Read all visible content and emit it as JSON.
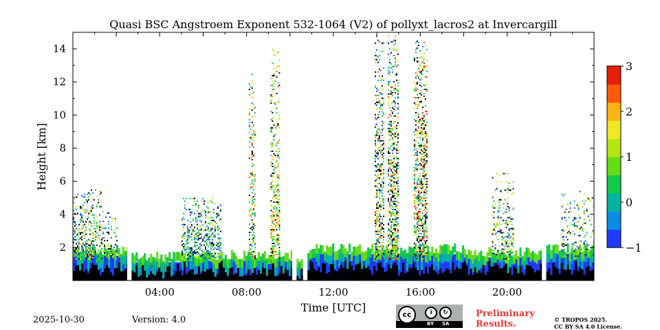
{
  "chart_data": {
    "type": "heatmap",
    "title": "Quasi BSC Angstroem Exponent 532-1064 (V2) of pollyxt_lacros2 at Invercargill",
    "xlabel": "Time [UTC]",
    "ylabel": "Height [km]",
    "xlim_hours": [
      0,
      24
    ],
    "ylim_km": [
      0,
      15
    ],
    "x_ticks": [
      {
        "hour": 4,
        "label": "04:00"
      },
      {
        "hour": 8,
        "label": "08:00"
      },
      {
        "hour": 12,
        "label": "12:00"
      },
      {
        "hour": 16,
        "label": "16:00"
      },
      {
        "hour": 20,
        "label": "20:00"
      }
    ],
    "y_ticks": [
      {
        "value": 2,
        "label": "2"
      },
      {
        "value": 4,
        "label": "4"
      },
      {
        "value": 6,
        "label": "6"
      },
      {
        "value": 8,
        "label": "8"
      },
      {
        "value": 10,
        "label": "10"
      },
      {
        "value": 12,
        "label": "12"
      },
      {
        "value": 14,
        "label": "14"
      }
    ],
    "colorbar": {
      "range": [
        -1,
        3
      ],
      "colors": [
        "#1e3cff",
        "#0a8ce6",
        "#00b4a0",
        "#14c84b",
        "#64dc14",
        "#b4e614",
        "#f0e628",
        "#ffb414",
        "#ff5a0a",
        "#e61e0a"
      ],
      "ticks": [
        {
          "value": 3,
          "label": "3"
        },
        {
          "value": 2,
          "label": "2"
        },
        {
          "value": 1,
          "label": "1"
        },
        {
          "value": 0,
          "label": "0"
        },
        {
          "value": -1,
          "label": "−1"
        }
      ]
    },
    "low_layer_blocks": [
      {
        "start": 0.0,
        "end": 2.5,
        "top": 1.5
      },
      {
        "start": 2.7,
        "end": 5.0,
        "top": 1.1
      },
      {
        "start": 5.0,
        "end": 10.1,
        "top": 1.2
      },
      {
        "start": 10.3,
        "end": 10.6,
        "top": 1.0
      },
      {
        "start": 10.8,
        "end": 18.0,
        "top": 1.6
      },
      {
        "start": 18.0,
        "end": 21.6,
        "top": 1.4
      },
      {
        "start": 21.8,
        "end": 24.0,
        "top": 1.6
      }
    ],
    "data_gaps": [
      {
        "start": 2.5,
        "end": 2.7
      },
      {
        "start": 10.1,
        "end": 10.3
      },
      {
        "start": 10.6,
        "end": 10.8
      },
      {
        "start": 21.6,
        "end": 21.8
      }
    ],
    "plumes": [
      {
        "start": 0.0,
        "end": 1.3,
        "top": 5.5,
        "density": 0.45,
        "vmin": -1,
        "vmax": 2
      },
      {
        "start": 1.3,
        "end": 2.0,
        "top": 4.2,
        "density": 0.3,
        "vmin": -1,
        "vmax": 1.5
      },
      {
        "start": 5.0,
        "end": 6.8,
        "top": 5.0,
        "density": 0.5,
        "vmin": -1,
        "vmax": 1.5
      },
      {
        "start": 8.1,
        "end": 8.4,
        "top": 12.5,
        "density": 0.35,
        "vmin": -0.5,
        "vmax": 2.5
      },
      {
        "start": 9.1,
        "end": 9.5,
        "top": 14.0,
        "density": 0.45,
        "vmin": 0,
        "vmax": 2.5
      },
      {
        "start": 13.9,
        "end": 14.3,
        "top": 14.8,
        "density": 0.5,
        "vmin": -1,
        "vmax": 2.5
      },
      {
        "start": 14.5,
        "end": 15.0,
        "top": 14.8,
        "density": 0.55,
        "vmin": -1,
        "vmax": 2.5
      },
      {
        "start": 15.7,
        "end": 16.3,
        "top": 14.5,
        "density": 0.55,
        "vmin": -0.5,
        "vmax": 3
      },
      {
        "start": 19.3,
        "end": 20.3,
        "top": 6.5,
        "density": 0.3,
        "vmin": -1,
        "vmax": 2
      },
      {
        "start": 22.5,
        "end": 24.0,
        "top": 5.5,
        "density": 0.2,
        "vmin": -1,
        "vmax": 2
      }
    ]
  },
  "footer": {
    "date": "2025-10-30",
    "version": "Version: 4.0",
    "preliminary_line1": "Preliminary",
    "preliminary_line2": "Results.",
    "copyright_line1": "© TROPOS 2025.",
    "copyright_line2": "CC BY SA 4.0 License.",
    "cc_badge": {
      "cc": "cc",
      "by_icon": "i",
      "sa_icon": "↻",
      "by": "BY",
      "sa": "SA"
    }
  }
}
